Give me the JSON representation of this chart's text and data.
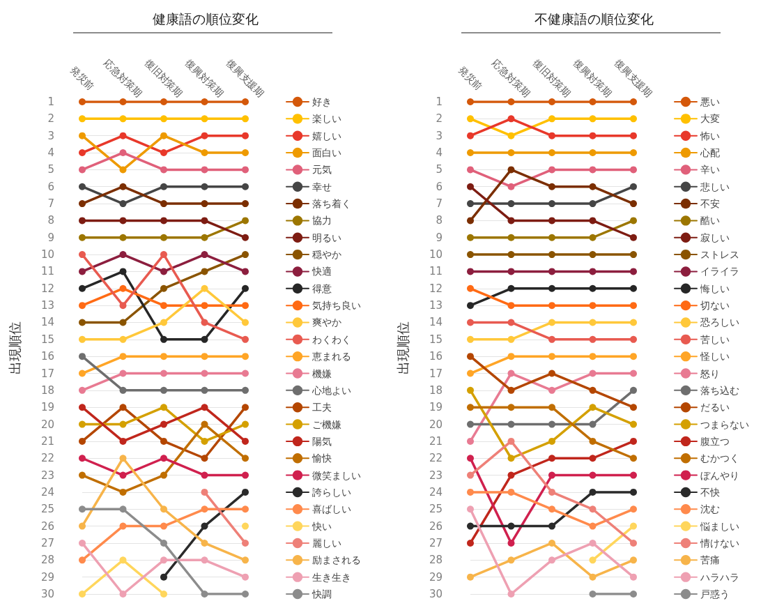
{
  "chart_data": [
    {
      "type": "line",
      "title": "健康語の順位変化",
      "ylabel": "出現順位",
      "categories": [
        "発災前",
        "応急対策期",
        "復旧対策期",
        "復興対策期",
        "復興支援期"
      ],
      "ylim": [
        30,
        1
      ],
      "yticks": [
        1,
        2,
        3,
        4,
        5,
        6,
        7,
        8,
        9,
        10,
        11,
        12,
        13,
        14,
        15,
        16,
        17,
        18,
        19,
        20,
        21,
        22,
        23,
        24,
        25,
        26,
        27,
        28,
        29,
        30
      ],
      "grid": "y",
      "legend": "right",
      "marker": "circle",
      "line_style": "solid",
      "series": [
        {
          "name": "好き",
          "color": "#d4580a",
          "values": [
            1,
            1,
            1,
            1,
            1
          ]
        },
        {
          "name": "楽しい",
          "color": "#ffc000",
          "values": [
            2,
            2,
            2,
            2,
            2
          ]
        },
        {
          "name": "嬉しい",
          "color": "#e8382a",
          "values": [
            4,
            3,
            4,
            3,
            3
          ]
        },
        {
          "name": "面白い",
          "color": "#ee9a00",
          "values": [
            3,
            5,
            3,
            4,
            4
          ]
        },
        {
          "name": "元気",
          "color": "#e0607a",
          "values": [
            5,
            4,
            5,
            5,
            5
          ]
        },
        {
          "name": "幸せ",
          "color": "#454545",
          "values": [
            6,
            7,
            6,
            6,
            6
          ]
        },
        {
          "name": "落ち着く",
          "color": "#7b2e00",
          "values": [
            7,
            6,
            7,
            7,
            7
          ]
        },
        {
          "name": "協力",
          "color": "#9c7600",
          "values": [
            9,
            9,
            9,
            9,
            8
          ]
        },
        {
          "name": "明るい",
          "color": "#7d1c12",
          "values": [
            8,
            8,
            8,
            8,
            9
          ]
        },
        {
          "name": "穏やか",
          "color": "#8a5400",
          "values": [
            14,
            14,
            12,
            11,
            10
          ]
        },
        {
          "name": "快適",
          "color": "#8c1e3e",
          "values": [
            11,
            10,
            11,
            10,
            11
          ]
        },
        {
          "name": "得意",
          "color": "#262626",
          "values": [
            12,
            11,
            15,
            15,
            12
          ]
        },
        {
          "name": "気持ち良い",
          "color": "#ff6a14",
          "values": [
            13,
            12,
            13,
            13,
            13
          ]
        },
        {
          "name": "爽やか",
          "color": "#ffc83a",
          "values": [
            15,
            15,
            14,
            12,
            14
          ]
        },
        {
          "name": "わくわく",
          "color": "#e85a50",
          "values": [
            10,
            13,
            10,
            14,
            15
          ]
        },
        {
          "name": "恵まれる",
          "color": "#ffa526",
          "values": [
            17,
            16,
            16,
            16,
            16
          ]
        },
        {
          "name": "機嫌",
          "color": "#e87a92",
          "values": [
            18,
            17,
            17,
            17,
            17
          ]
        },
        {
          "name": "心地よい",
          "color": "#6e6e6e",
          "values": [
            16,
            18,
            18,
            18,
            18
          ]
        },
        {
          "name": "工夫",
          "color": "#b44600",
          "values": [
            21,
            19,
            21,
            22,
            19
          ]
        },
        {
          "name": "ご機嫌",
          "color": "#d4a000",
          "values": [
            20,
            20,
            19,
            21,
            20
          ]
        },
        {
          "name": "陽気",
          "color": "#c0261c",
          "values": [
            19,
            21,
            20,
            19,
            21
          ]
        },
        {
          "name": "愉快",
          "color": "#c06e00",
          "values": [
            23,
            24,
            23,
            20,
            22
          ]
        },
        {
          "name": "微笑ましい",
          "color": "#d0204e",
          "values": [
            22,
            23,
            22,
            23,
            23
          ]
        },
        {
          "name": "誇らしい",
          "color": "#2a2a2a",
          "values": [
            null,
            null,
            29,
            26,
            24
          ]
        },
        {
          "name": "喜ばしい",
          "color": "#ff8a4c",
          "values": [
            28,
            26,
            26,
            25,
            25
          ]
        },
        {
          "name": "快い",
          "color": "#ffd65c",
          "values": [
            30,
            28,
            30,
            null,
            26
          ]
        },
        {
          "name": "麗しい",
          "color": "#ee8078",
          "values": [
            null,
            null,
            null,
            24,
            27
          ]
        },
        {
          "name": "励まされる",
          "color": "#f7b44a",
          "values": [
            26,
            22,
            25,
            27,
            28
          ]
        },
        {
          "name": "生き生き",
          "color": "#eea0b2",
          "values": [
            27,
            30,
            28,
            28,
            29
          ]
        },
        {
          "name": "快調",
          "color": "#8c8c8c",
          "values": [
            25,
            25,
            27,
            30,
            30
          ]
        }
      ]
    },
    {
      "type": "line",
      "title": "不健康語の順位変化",
      "ylabel": "出現順位",
      "categories": [
        "発災前",
        "応急対策期",
        "復旧対策期",
        "復興対策期",
        "復興支援期"
      ],
      "ylim": [
        30,
        1
      ],
      "yticks": [
        1,
        2,
        3,
        4,
        5,
        6,
        7,
        8,
        9,
        10,
        11,
        12,
        13,
        14,
        15,
        16,
        17,
        18,
        19,
        20,
        21,
        22,
        23,
        24,
        25,
        26,
        27,
        28,
        29,
        30
      ],
      "grid": "y",
      "legend": "right",
      "marker": "circle",
      "line_style": "solid",
      "series": [
        {
          "name": "悪い",
          "color": "#d4580a",
          "values": [
            1,
            1,
            1,
            1,
            1
          ]
        },
        {
          "name": "大変",
          "color": "#ffc000",
          "values": [
            2,
            3,
            2,
            2,
            2
          ]
        },
        {
          "name": "怖い",
          "color": "#e8382a",
          "values": [
            3,
            2,
            3,
            3,
            3
          ]
        },
        {
          "name": "心配",
          "color": "#ee9a00",
          "values": [
            4,
            4,
            4,
            4,
            4
          ]
        },
        {
          "name": "辛い",
          "color": "#e0607a",
          "values": [
            5,
            6,
            5,
            5,
            5
          ]
        },
        {
          "name": "悲しい",
          "color": "#454545",
          "values": [
            7,
            7,
            7,
            7,
            6
          ]
        },
        {
          "name": "不安",
          "color": "#7b2e00",
          "values": [
            8,
            5,
            6,
            6,
            7
          ]
        },
        {
          "name": "酷い",
          "color": "#9c7600",
          "values": [
            9,
            9,
            9,
            9,
            8
          ]
        },
        {
          "name": "寂しい",
          "color": "#7d1c12",
          "values": [
            6,
            8,
            8,
            8,
            9
          ]
        },
        {
          "name": "ストレス",
          "color": "#8a5400",
          "values": [
            10,
            10,
            10,
            10,
            10
          ]
        },
        {
          "name": "イライラ",
          "color": "#8c1e3e",
          "values": [
            11,
            11,
            11,
            11,
            11
          ]
        },
        {
          "name": "悔しい",
          "color": "#262626",
          "values": [
            13,
            12,
            12,
            12,
            12
          ]
        },
        {
          "name": "切ない",
          "color": "#ff6a14",
          "values": [
            12,
            13,
            13,
            13,
            13
          ]
        },
        {
          "name": "恐ろしい",
          "color": "#ffc83a",
          "values": [
            15,
            15,
            14,
            14,
            14
          ]
        },
        {
          "name": "苦しい",
          "color": "#e85a50",
          "values": [
            14,
            14,
            15,
            15,
            15
          ]
        },
        {
          "name": "怪しい",
          "color": "#ffa526",
          "values": [
            17,
            16,
            16,
            16,
            16
          ]
        },
        {
          "name": "怒り",
          "color": "#e87a92",
          "values": [
            21,
            17,
            18,
            17,
            17
          ]
        },
        {
          "name": "落ち込む",
          "color": "#6e6e6e",
          "values": [
            20,
            20,
            20,
            20,
            18
          ]
        },
        {
          "name": "だるい",
          "color": "#b44600",
          "values": [
            16,
            18,
            17,
            18,
            19
          ]
        },
        {
          "name": "つまらない",
          "color": "#d4a000",
          "values": [
            18,
            22,
            21,
            19,
            20
          ]
        },
        {
          "name": "腹立つ",
          "color": "#c0261c",
          "values": [
            27,
            23,
            22,
            22,
            21
          ]
        },
        {
          "name": "むかつく",
          "color": "#c06e00",
          "values": [
            19,
            19,
            19,
            21,
            22
          ]
        },
        {
          "name": "ぼんやり",
          "color": "#d0204e",
          "values": [
            22,
            27,
            23,
            23,
            23
          ]
        },
        {
          "name": "不快",
          "color": "#2a2a2a",
          "values": [
            26,
            26,
            26,
            24,
            24
          ]
        },
        {
          "name": "沈む",
          "color": "#ff8a4c",
          "values": [
            24,
            24,
            25,
            26,
            25
          ]
        },
        {
          "name": "悩ましい",
          "color": "#ffd65c",
          "values": [
            null,
            null,
            null,
            28,
            26
          ]
        },
        {
          "name": "情けない",
          "color": "#ee8078",
          "values": [
            23,
            21,
            24,
            25,
            27
          ]
        },
        {
          "name": "苦痛",
          "color": "#f7b44a",
          "values": [
            29,
            28,
            27,
            29,
            28
          ]
        },
        {
          "name": "ハラハラ",
          "color": "#eea0b2",
          "values": [
            25,
            30,
            28,
            27,
            29
          ]
        },
        {
          "name": "戸惑う",
          "color": "#8c8c8c",
          "values": [
            null,
            null,
            null,
            30,
            30
          ]
        }
      ]
    }
  ]
}
